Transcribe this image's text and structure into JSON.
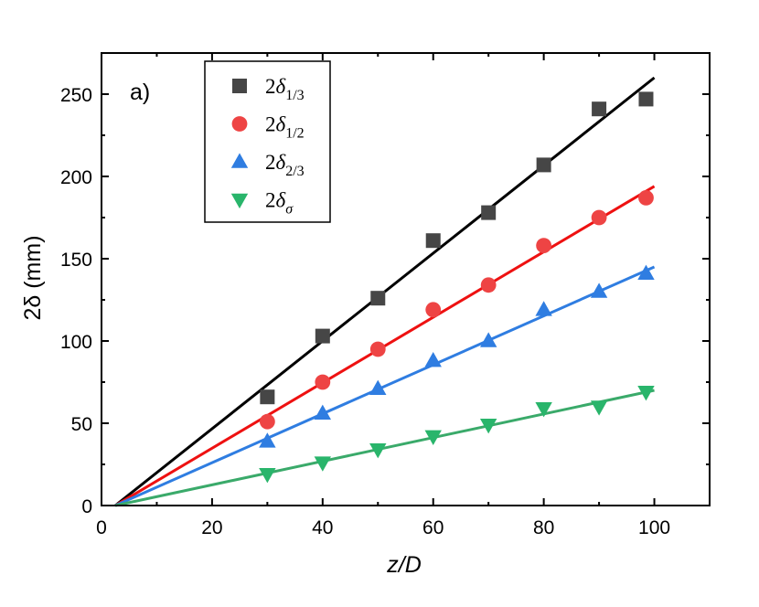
{
  "chart_data": {
    "type": "scatter",
    "panel_label": "a)",
    "xlabel": "z/D",
    "ylabel": "2δ  (mm)",
    "xlim": [
      0,
      110
    ],
    "ylim": [
      0,
      275
    ],
    "xticks": [
      0,
      20,
      40,
      60,
      80,
      100
    ],
    "yticks": [
      0,
      50,
      100,
      150,
      200,
      250
    ],
    "grid": false,
    "legend_position": "top-left",
    "series": [
      {
        "name": "2δ1/3",
        "legend_main": "2",
        "legend_symbol": "δ",
        "legend_sub": "1/3",
        "marker": "square",
        "color": "#464646",
        "line_color": "#000000",
        "x": [
          30,
          40,
          50,
          60,
          70,
          80,
          90,
          98.5
        ],
        "y": [
          66,
          103,
          126,
          161,
          178,
          207,
          241,
          247
        ],
        "fit": {
          "x": [
            2.5,
            100
          ],
          "y": [
            0,
            260
          ]
        }
      },
      {
        "name": "2δ1/2",
        "legend_main": "2",
        "legend_symbol": "δ",
        "legend_sub": "1/2",
        "marker": "circle",
        "color": "#ee4444",
        "line_color": "#ee1111",
        "x": [
          30,
          40,
          50,
          60,
          70,
          80,
          90,
          98.5
        ],
        "y": [
          51,
          75,
          95,
          119,
          134,
          158,
          175,
          187
        ],
        "fit": {
          "x": [
            2.5,
            100
          ],
          "y": [
            0,
            194
          ]
        }
      },
      {
        "name": "2δ2/3",
        "legend_main": "2",
        "legend_symbol": "δ",
        "legend_sub": "2/3",
        "marker": "triangle-up",
        "color": "#2f7de1",
        "line_color": "#2f7de1",
        "x": [
          30,
          40,
          50,
          60,
          70,
          80,
          90,
          98.5
        ],
        "y": [
          39,
          56,
          71,
          88,
          100,
          119,
          130,
          141
        ],
        "fit": {
          "x": [
            2.5,
            100
          ],
          "y": [
            0,
            145
          ]
        }
      },
      {
        "name": "2δσ",
        "legend_main": "2",
        "legend_symbol": "δ",
        "legend_sub": "σ",
        "marker": "triangle-down",
        "color": "#29b56b",
        "line_color": "#3aaa6a",
        "x": [
          30,
          40,
          50,
          60,
          70,
          80,
          90,
          98.5
        ],
        "y": [
          19,
          26,
          34,
          42,
          49,
          59,
          60,
          69
        ],
        "fit": {
          "x": [
            2.5,
            100
          ],
          "y": [
            0,
            70
          ]
        }
      }
    ]
  }
}
